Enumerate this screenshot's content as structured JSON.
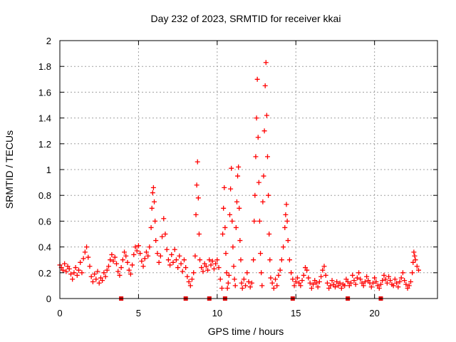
{
  "chart_data": {
    "type": "scatter",
    "title": "Day 232 of 2023, SRMTID for receiver kkai",
    "xlabel": "GPS time / hours",
    "ylabel": "SRMTID / TECUs",
    "xlim": [
      0,
      24
    ],
    "ylim": [
      0,
      2
    ],
    "x_ticks": [
      0,
      5,
      10,
      15,
      20
    ],
    "x_tick_labels": [
      "0",
      "5",
      "10",
      "15",
      "20"
    ],
    "y_ticks": [
      0,
      0.2,
      0.4,
      0.6,
      0.8,
      1,
      1.2,
      1.4,
      1.6,
      1.8,
      2
    ],
    "y_tick_labels": [
      "0",
      "0.2",
      "0.4",
      "0.6",
      "0.8",
      "1",
      "1.2",
      "1.4",
      "1.6",
      "1.8",
      "2"
    ],
    "grid": true,
    "marker": "plus",
    "color": "#ff0000",
    "series": [
      {
        "name": "SRMTID",
        "points": [
          [
            0.0,
            0.26
          ],
          [
            0.1,
            0.24
          ],
          [
            0.2,
            0.22
          ],
          [
            0.3,
            0.27
          ],
          [
            0.4,
            0.21
          ],
          [
            0.5,
            0.25
          ],
          [
            0.6,
            0.23
          ],
          [
            0.7,
            0.19
          ],
          [
            0.8,
            0.15
          ],
          [
            0.9,
            0.2
          ],
          [
            1.0,
            0.24
          ],
          [
            1.1,
            0.18
          ],
          [
            1.2,
            0.22
          ],
          [
            1.3,
            0.28
          ],
          [
            1.4,
            0.2
          ],
          [
            1.5,
            0.31
          ],
          [
            1.6,
            0.36
          ],
          [
            1.7,
            0.4
          ],
          [
            1.8,
            0.32
          ],
          [
            1.9,
            0.25
          ],
          [
            2.0,
            0.17
          ],
          [
            2.1,
            0.13
          ],
          [
            2.2,
            0.19
          ],
          [
            2.3,
            0.15
          ],
          [
            2.4,
            0.21
          ],
          [
            2.5,
            0.12
          ],
          [
            2.6,
            0.16
          ],
          [
            2.7,
            0.14
          ],
          [
            2.8,
            0.2
          ],
          [
            2.9,
            0.17
          ],
          [
            3.0,
            0.22
          ],
          [
            3.1,
            0.25
          ],
          [
            3.2,
            0.3
          ],
          [
            3.3,
            0.34
          ],
          [
            3.4,
            0.29
          ],
          [
            3.5,
            0.32
          ],
          [
            3.6,
            0.27
          ],
          [
            3.7,
            0.21
          ],
          [
            3.8,
            0.18
          ],
          [
            3.9,
            0.24
          ],
          [
            4.0,
            0.3
          ],
          [
            4.1,
            0.36
          ],
          [
            4.2,
            0.33
          ],
          [
            4.3,
            0.28
          ],
          [
            4.4,
            0.22
          ],
          [
            4.5,
            0.19
          ],
          [
            4.6,
            0.26
          ],
          [
            4.7,
            0.34
          ],
          [
            4.8,
            0.4
          ],
          [
            4.9,
            0.37
          ],
          [
            5.0,
            0.41
          ],
          [
            5.1,
            0.35
          ],
          [
            5.2,
            0.29
          ],
          [
            5.3,
            0.25
          ],
          [
            5.4,
            0.31
          ],
          [
            5.5,
            0.36
          ],
          [
            5.6,
            0.33
          ],
          [
            5.7,
            0.4
          ],
          [
            5.8,
            0.55
          ],
          [
            5.85,
            0.7
          ],
          [
            5.9,
            0.82
          ],
          [
            5.95,
            0.86
          ],
          [
            6.0,
            0.75
          ],
          [
            6.05,
            0.6
          ],
          [
            6.1,
            0.45
          ],
          [
            6.2,
            0.35
          ],
          [
            6.3,
            0.28
          ],
          [
            6.4,
            0.33
          ],
          [
            6.5,
            0.48
          ],
          [
            6.6,
            0.62
          ],
          [
            6.7,
            0.5
          ],
          [
            6.8,
            0.38
          ],
          [
            6.9,
            0.3
          ],
          [
            7.0,
            0.26
          ],
          [
            7.1,
            0.34
          ],
          [
            7.2,
            0.28
          ],
          [
            7.3,
            0.38
          ],
          [
            7.4,
            0.3
          ],
          [
            7.5,
            0.24
          ],
          [
            7.6,
            0.33
          ],
          [
            7.7,
            0.27
          ],
          [
            7.8,
            0.21
          ],
          [
            7.9,
            0.3
          ],
          [
            8.0,
            0.24
          ],
          [
            8.1,
            0.17
          ],
          [
            8.2,
            0.13
          ],
          [
            8.3,
            0.1
          ],
          [
            8.4,
            0.15
          ],
          [
            8.5,
            0.2
          ],
          [
            8.6,
            0.33
          ],
          [
            8.65,
            0.65
          ],
          [
            8.7,
            0.88
          ],
          [
            8.75,
            1.06
          ],
          [
            8.8,
            0.78
          ],
          [
            8.85,
            0.5
          ],
          [
            8.9,
            0.3
          ],
          [
            9.0,
            0.24
          ],
          [
            9.1,
            0.21
          ],
          [
            9.2,
            0.27
          ],
          [
            9.3,
            0.25
          ],
          [
            9.4,
            0.22
          ],
          [
            9.5,
            0.3
          ],
          [
            9.6,
            0.26
          ],
          [
            9.7,
            0.29
          ],
          [
            9.8,
            0.23
          ],
          [
            9.9,
            0.27
          ],
          [
            10.0,
            0.3
          ],
          [
            10.1,
            0.24
          ],
          [
            10.2,
            0.15
          ],
          [
            10.3,
            0.08
          ],
          [
            10.35,
            0.5
          ],
          [
            10.4,
            0.7
          ],
          [
            10.45,
            0.86
          ],
          [
            10.5,
            0.55
          ],
          [
            10.55,
            0.35
          ],
          [
            10.6,
            0.2
          ],
          [
            10.65,
            0.08
          ],
          [
            10.7,
            0.12
          ],
          [
            10.75,
            0.18
          ],
          [
            10.8,
            0.65
          ],
          [
            10.85,
            0.85
          ],
          [
            10.9,
            1.01
          ],
          [
            10.95,
            0.6
          ],
          [
            11.0,
            0.4
          ],
          [
            11.05,
            0.25
          ],
          [
            11.1,
            0.15
          ],
          [
            11.15,
            0.1
          ],
          [
            11.2,
            0.55
          ],
          [
            11.25,
            0.75
          ],
          [
            11.3,
            0.95
          ],
          [
            11.35,
            1.02
          ],
          [
            11.4,
            0.7
          ],
          [
            11.45,
            0.45
          ],
          [
            11.5,
            0.3
          ],
          [
            11.55,
            0.12
          ],
          [
            11.6,
            0.08
          ],
          [
            11.7,
            0.15
          ],
          [
            11.8,
            0.1
          ],
          [
            11.9,
            0.2
          ],
          [
            12.0,
            0.13
          ],
          [
            12.1,
            0.09
          ],
          [
            12.2,
            0.12
          ],
          [
            12.3,
            0.3
          ],
          [
            12.35,
            0.6
          ],
          [
            12.4,
            0.8
          ],
          [
            12.45,
            1.1
          ],
          [
            12.5,
            1.4
          ],
          [
            12.55,
            1.7
          ],
          [
            12.6,
            1.25
          ],
          [
            12.65,
            0.9
          ],
          [
            12.7,
            0.6
          ],
          [
            12.75,
            0.35
          ],
          [
            12.8,
            0.2
          ],
          [
            12.85,
            0.1
          ],
          [
            12.9,
            0.75
          ],
          [
            12.95,
            0.95
          ],
          [
            13.0,
            1.3
          ],
          [
            13.05,
            1.65
          ],
          [
            13.1,
            1.83
          ],
          [
            13.15,
            1.42
          ],
          [
            13.2,
            1.1
          ],
          [
            13.25,
            0.8
          ],
          [
            13.3,
            0.5
          ],
          [
            13.35,
            0.3
          ],
          [
            13.4,
            0.16
          ],
          [
            13.5,
            0.12
          ],
          [
            13.6,
            0.08
          ],
          [
            13.7,
            0.15
          ],
          [
            13.8,
            0.1
          ],
          [
            13.9,
            0.18
          ],
          [
            14.0,
            0.22
          ],
          [
            14.1,
            0.3
          ],
          [
            14.2,
            0.4
          ],
          [
            14.3,
            0.55
          ],
          [
            14.35,
            0.65
          ],
          [
            14.4,
            0.73
          ],
          [
            14.45,
            0.6
          ],
          [
            14.5,
            0.45
          ],
          [
            14.6,
            0.3
          ],
          [
            14.7,
            0.2
          ],
          [
            14.8,
            0.15
          ],
          [
            14.9,
            0.1
          ],
          [
            15.0,
            0.13
          ],
          [
            15.1,
            0.16
          ],
          [
            15.2,
            0.12
          ],
          [
            15.3,
            0.1
          ],
          [
            15.4,
            0.14
          ],
          [
            15.5,
            0.18
          ],
          [
            15.6,
            0.24
          ],
          [
            15.7,
            0.22
          ],
          [
            15.8,
            0.16
          ],
          [
            15.9,
            0.12
          ],
          [
            16.0,
            0.08
          ],
          [
            16.1,
            0.11
          ],
          [
            16.2,
            0.14
          ],
          [
            16.3,
            0.12
          ],
          [
            16.4,
            0.09
          ],
          [
            16.5,
            0.13
          ],
          [
            16.6,
            0.17
          ],
          [
            16.7,
            0.22
          ],
          [
            16.8,
            0.25
          ],
          [
            16.9,
            0.18
          ],
          [
            17.0,
            0.12
          ],
          [
            17.1,
            0.08
          ],
          [
            17.2,
            0.1
          ],
          [
            17.3,
            0.14
          ],
          [
            17.4,
            0.11
          ],
          [
            17.5,
            0.09
          ],
          [
            17.6,
            0.13
          ],
          [
            17.7,
            0.1
          ],
          [
            17.8,
            0.12
          ],
          [
            17.9,
            0.08
          ],
          [
            18.0,
            0.11
          ],
          [
            18.1,
            0.1
          ],
          [
            18.2,
            0.15
          ],
          [
            18.3,
            0.13
          ],
          [
            18.4,
            0.1
          ],
          [
            18.5,
            0.12
          ],
          [
            18.6,
            0.18
          ],
          [
            18.7,
            0.14
          ],
          [
            18.8,
            0.11
          ],
          [
            18.9,
            0.16
          ],
          [
            19.0,
            0.2
          ],
          [
            19.1,
            0.15
          ],
          [
            19.2,
            0.12
          ],
          [
            19.3,
            0.1
          ],
          [
            19.4,
            0.13
          ],
          [
            19.5,
            0.17
          ],
          [
            19.6,
            0.14
          ],
          [
            19.7,
            0.12
          ],
          [
            19.8,
            0.09
          ],
          [
            19.9,
            0.12
          ],
          [
            20.0,
            0.16
          ],
          [
            20.1,
            0.13
          ],
          [
            20.2,
            0.1
          ],
          [
            20.3,
            0.08
          ],
          [
            20.4,
            0.11
          ],
          [
            20.5,
            0.14
          ],
          [
            20.6,
            0.18
          ],
          [
            20.7,
            0.15
          ],
          [
            20.8,
            0.12
          ],
          [
            20.9,
            0.17
          ],
          [
            21.0,
            0.14
          ],
          [
            21.1,
            0.11
          ],
          [
            21.2,
            0.1
          ],
          [
            21.3,
            0.15
          ],
          [
            21.4,
            0.12
          ],
          [
            21.5,
            0.09
          ],
          [
            21.6,
            0.13
          ],
          [
            21.7,
            0.16
          ],
          [
            21.8,
            0.2
          ],
          [
            21.9,
            0.14
          ],
          [
            22.0,
            0.11
          ],
          [
            22.1,
            0.08
          ],
          [
            22.2,
            0.1
          ],
          [
            22.3,
            0.13
          ],
          [
            22.4,
            0.2
          ],
          [
            22.45,
            0.28
          ],
          [
            22.5,
            0.36
          ],
          [
            22.55,
            0.33
          ],
          [
            22.6,
            0.3
          ],
          [
            22.7,
            0.25
          ],
          [
            22.8,
            0.22
          ]
        ]
      }
    ],
    "slip_markers_x": [
      3.9,
      8.0,
      9.5,
      10.5,
      14.8,
      18.3,
      20.4
    ]
  }
}
